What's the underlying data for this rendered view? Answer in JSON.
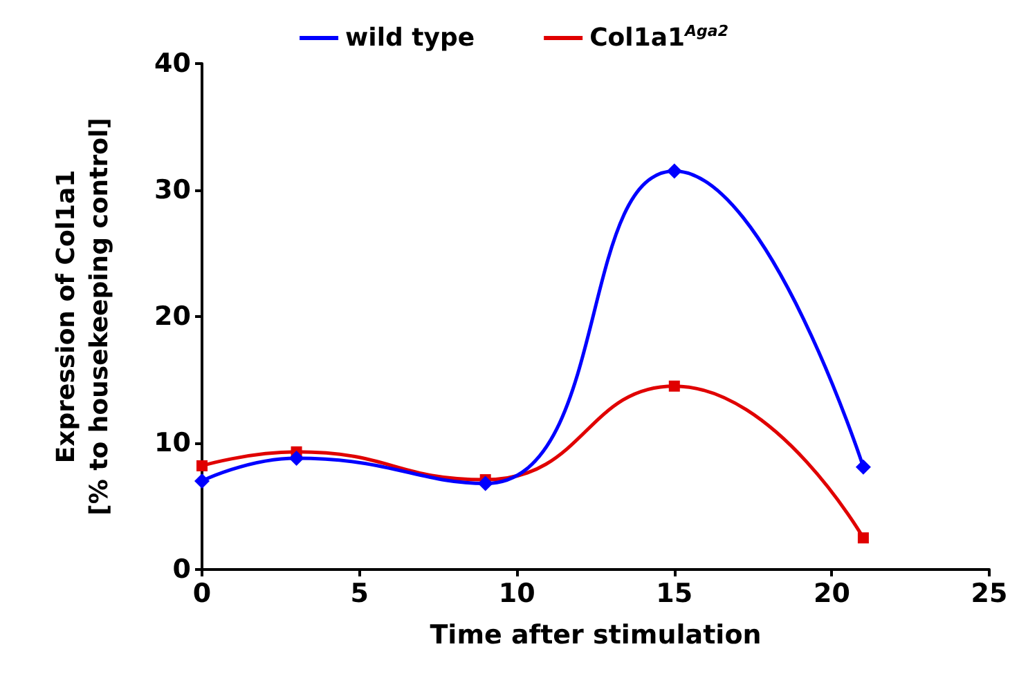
{
  "chart_data": {
    "type": "line",
    "xlabel": "Time after stimulation",
    "ylabel": "Expression of Col1a1\n[% to housekeeping control]",
    "x": [
      0,
      3,
      9,
      15,
      21
    ],
    "series": [
      {
        "name": "wild type",
        "color": "#0000ff",
        "marker": "diamond",
        "values": [
          7.0,
          8.8,
          6.8,
          31.5,
          8.1
        ]
      },
      {
        "name": "Col1a1$^{Aga2}$",
        "color": "#e00000",
        "marker": "square",
        "values": [
          8.2,
          9.3,
          7.1,
          14.5,
          2.5
        ]
      }
    ],
    "xlim": [
      0,
      25
    ],
    "xticks": [
      0,
      5,
      10,
      15,
      20,
      25
    ],
    "ylim": [
      0,
      40
    ],
    "yticks": [
      0,
      10,
      20,
      30,
      40
    ],
    "grid": false,
    "legend": "top"
  }
}
